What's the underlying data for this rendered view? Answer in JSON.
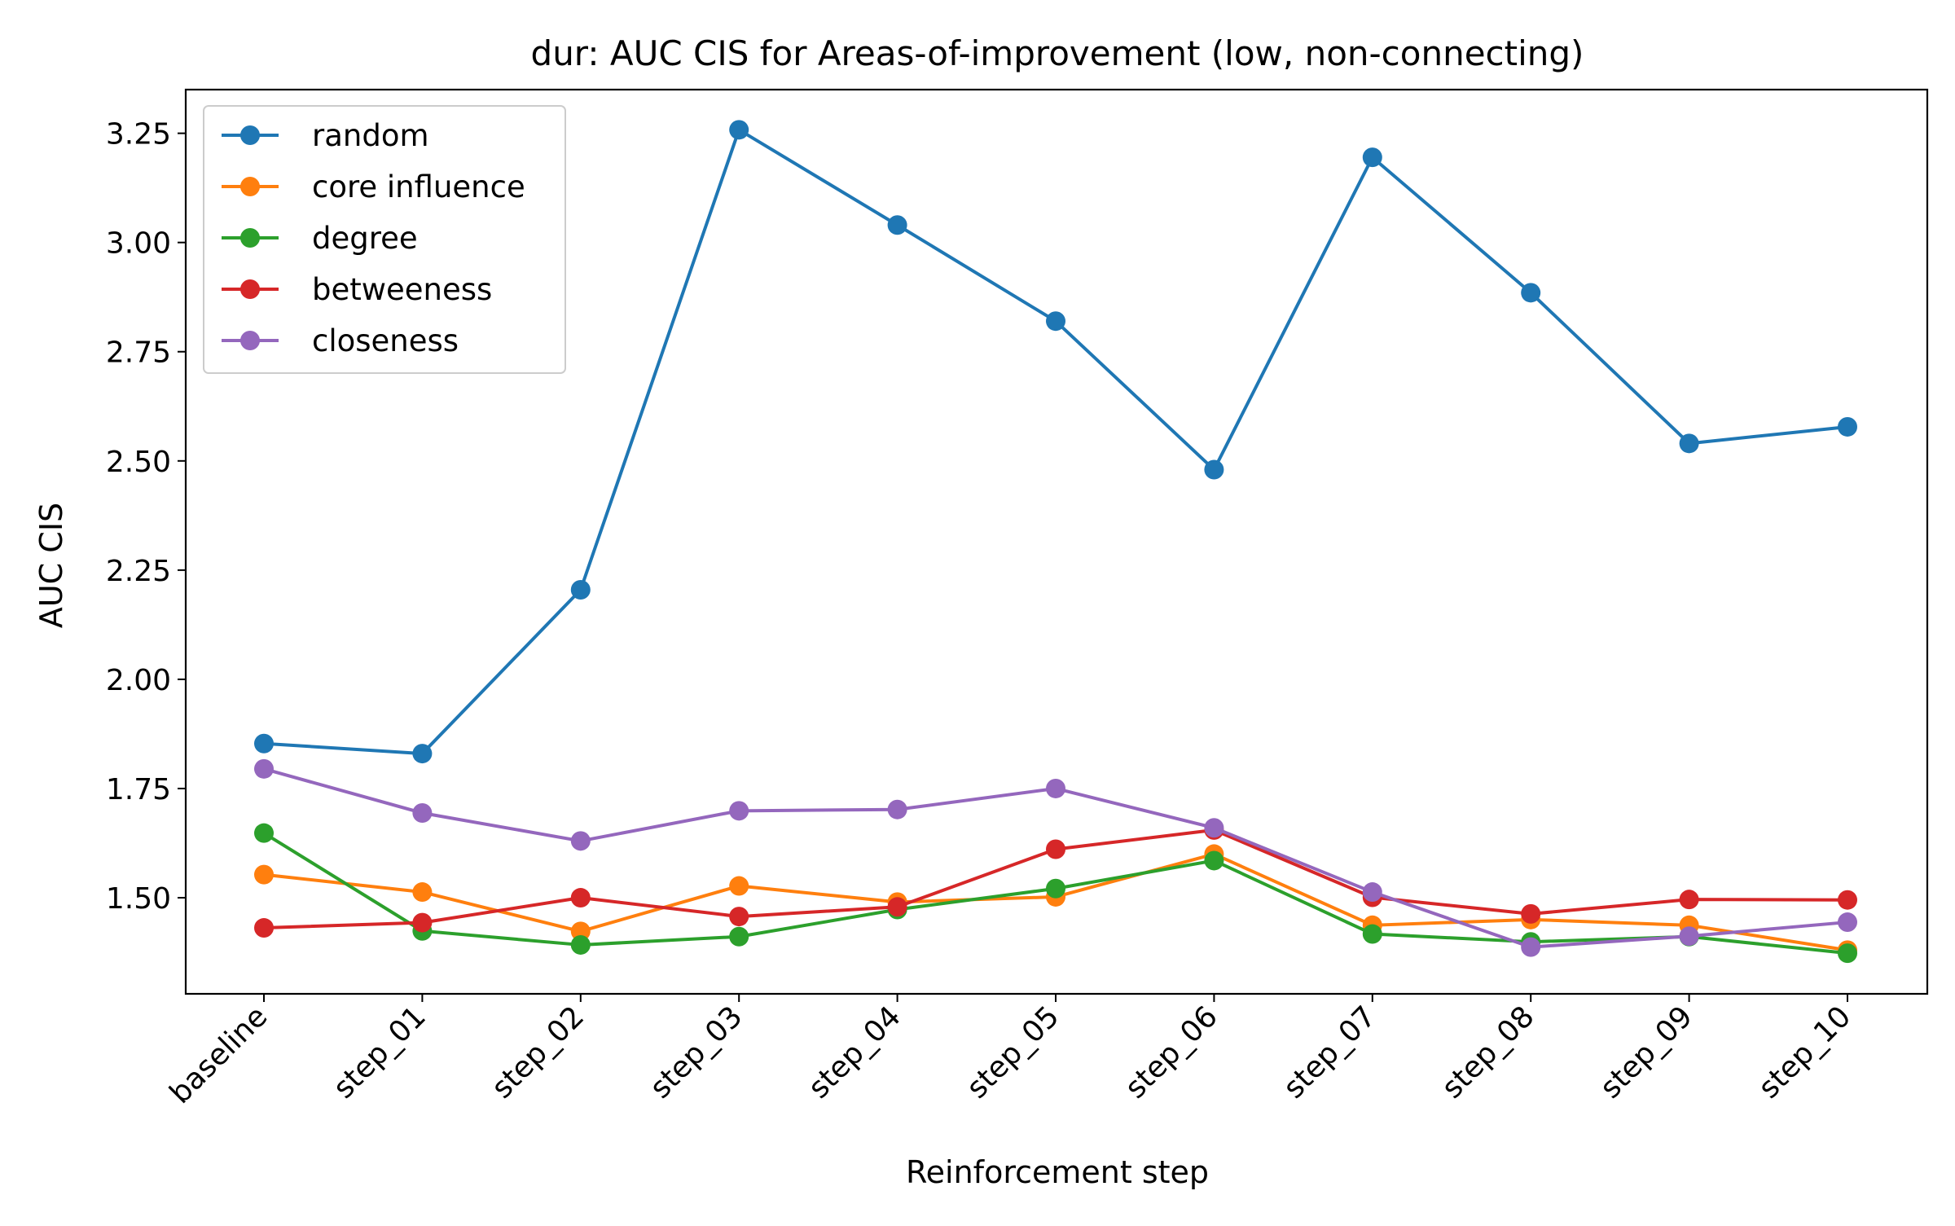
{
  "chart_data": {
    "type": "line",
    "title": "dur: AUC CIS for Areas-of-improvement (low, non-connecting)",
    "xlabel": "Reinforcement step",
    "ylabel": "AUC CIS",
    "categories": [
      "baseline",
      "step_01",
      "step_02",
      "step_03",
      "step_04",
      "step_05",
      "step_06",
      "step_07",
      "step_08",
      "step_09",
      "step_10"
    ],
    "ylim": [
      1.28,
      3.35
    ],
    "yticks": [
      "1.50",
      "1.75",
      "2.00",
      "2.25",
      "2.50",
      "2.75",
      "3.00",
      "3.25"
    ],
    "grid": false,
    "legend_position": "upper-left",
    "series": [
      {
        "name": "random",
        "color": "#1f77b4",
        "values": [
          1.853,
          1.83,
          2.205,
          3.258,
          3.04,
          2.82,
          2.48,
          3.195,
          2.885,
          2.54,
          2.578
        ]
      },
      {
        "name": "core influence",
        "color": "#ff7f0e",
        "values": [
          1.553,
          1.513,
          1.423,
          1.527,
          1.49,
          1.502,
          1.6,
          1.437,
          1.45,
          1.437,
          1.38
        ]
      },
      {
        "name": "degree",
        "color": "#2ca02c",
        "values": [
          1.648,
          1.424,
          1.392,
          1.411,
          1.473,
          1.521,
          1.585,
          1.417,
          1.399,
          1.411,
          1.373
        ]
      },
      {
        "name": "betweeness",
        "color": "#d62728",
        "values": [
          1.431,
          1.443,
          1.5,
          1.457,
          1.479,
          1.611,
          1.655,
          1.501,
          1.463,
          1.496,
          1.495
        ]
      },
      {
        "name": "closeness",
        "color": "#9467bd",
        "values": [
          1.795,
          1.694,
          1.63,
          1.699,
          1.702,
          1.75,
          1.66,
          1.513,
          1.387,
          1.412,
          1.444
        ]
      }
    ]
  }
}
